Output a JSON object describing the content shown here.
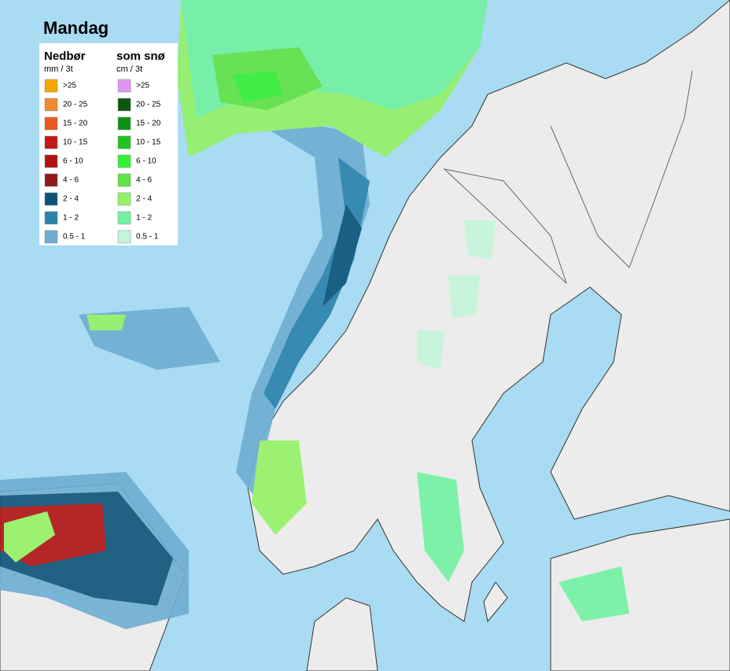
{
  "title": "Mandag",
  "legend": {
    "precipitation": {
      "title": "Nedbør",
      "unit": "mm / 3t",
      "items": [
        {
          "label": ">25",
          "color": "#f5a800"
        },
        {
          "label": "20 - 25",
          "color": "#f08a30"
        },
        {
          "label": "15 - 20",
          "color": "#e85a20"
        },
        {
          "label": "10 - 15",
          "color": "#c21818"
        },
        {
          "label": "6 - 10",
          "color": "#b01212"
        },
        {
          "label": "4 - 6",
          "color": "#8e1a1a"
        },
        {
          "label": "2 - 4",
          "color": "#0b5279"
        },
        {
          "label": "1 - 2",
          "color": "#2b82aa"
        },
        {
          "label": "0.5 - 1",
          "color": "#6eaed2"
        }
      ]
    },
    "snow": {
      "title": "som snø",
      "unit": "cm / 3t",
      "items": [
        {
          "label": ">25",
          "color": "#e094f2"
        },
        {
          "label": "20 - 25",
          "color": "#0b5a12"
        },
        {
          "label": "15 - 20",
          "color": "#0c9212"
        },
        {
          "label": "10 - 15",
          "color": "#22c222"
        },
        {
          "label": "6 - 10",
          "color": "#34f034"
        },
        {
          "label": "4 - 6",
          "color": "#62e244"
        },
        {
          "label": "2 - 4",
          "color": "#94f266"
        },
        {
          "label": "1 - 2",
          "color": "#72f2a2"
        },
        {
          "label": "0.5 - 1",
          "color": "#c2f6da"
        }
      ]
    }
  }
}
